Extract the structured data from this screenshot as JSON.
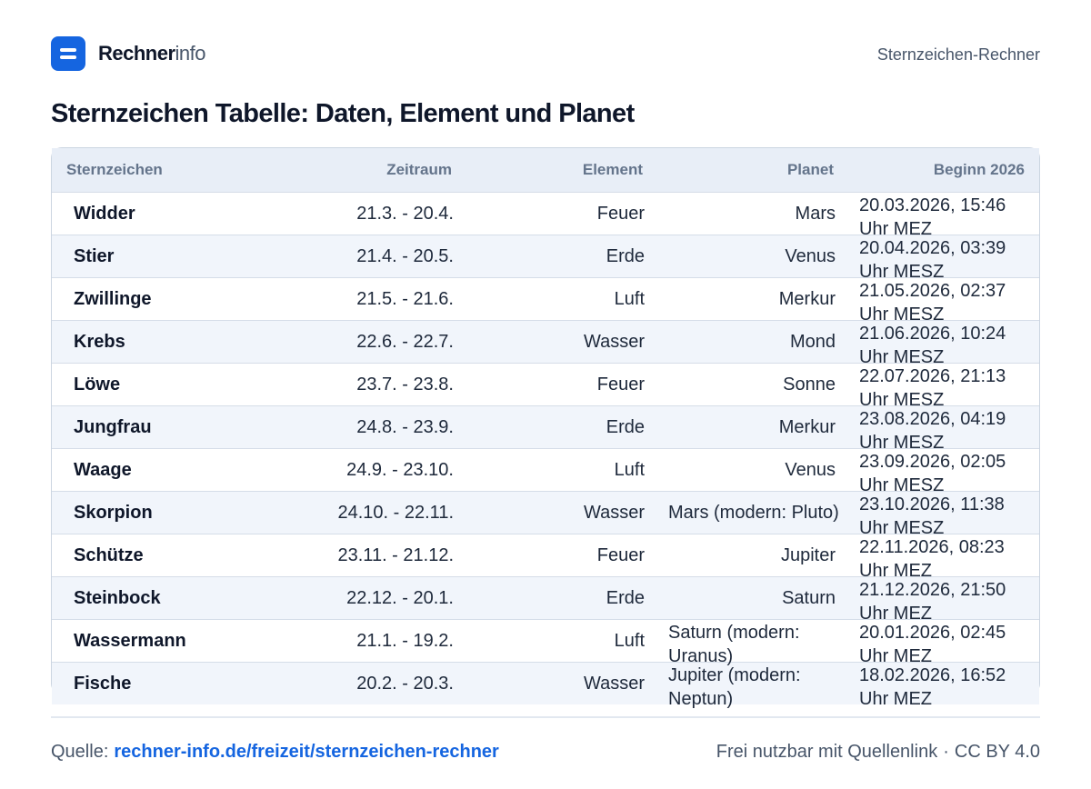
{
  "header": {
    "logo_icon": "equals-icon",
    "brand_bold": "Rechner",
    "brand_light": "info",
    "section": "Sternzeichen-Rechner",
    "accent_color": "#1565e0"
  },
  "title": "Sternzeichen Tabelle: Daten, Element und Planet",
  "table": {
    "headers": [
      "Sternzeichen",
      "Zeitraum",
      "Element",
      "Planet",
      "Beginn 2026"
    ],
    "rows": [
      [
        "Widder",
        "21.3. - 20.4.",
        "Feuer",
        "Mars",
        "20.03.2026, 15:46 Uhr MEZ"
      ],
      [
        "Stier",
        "21.4. - 20.5.",
        "Erde",
        "Venus",
        "20.04.2026, 03:39 Uhr MESZ"
      ],
      [
        "Zwillinge",
        "21.5. - 21.6.",
        "Luft",
        "Merkur",
        "21.05.2026, 02:37 Uhr MESZ"
      ],
      [
        "Krebs",
        "22.6. - 22.7.",
        "Wasser",
        "Mond",
        "21.06.2026, 10:24 Uhr MESZ"
      ],
      [
        "Löwe",
        "23.7. - 23.8.",
        "Feuer",
        "Sonne",
        "22.07.2026, 21:13 Uhr MESZ"
      ],
      [
        "Jungfrau",
        "24.8. - 23.9.",
        "Erde",
        "Merkur",
        "23.08.2026, 04:19 Uhr MESZ"
      ],
      [
        "Waage",
        "24.9. - 23.10.",
        "Luft",
        "Venus",
        "23.09.2026, 02:05 Uhr MESZ"
      ],
      [
        "Skorpion",
        "24.10. - 22.11.",
        "Wasser",
        "Mars (modern: Pluto)",
        "23.10.2026, 11:38 Uhr MESZ"
      ],
      [
        "Schütze",
        "23.11. - 21.12.",
        "Feuer",
        "Jupiter",
        "22.11.2026, 08:23 Uhr MEZ"
      ],
      [
        "Steinbock",
        "22.12. - 20.1.",
        "Erde",
        "Saturn",
        "21.12.2026, 21:50 Uhr MEZ"
      ],
      [
        "Wassermann",
        "21.1. - 19.2.",
        "Luft",
        "Saturn (modern: Uranus)",
        "20.01.2026, 02:45 Uhr MEZ"
      ],
      [
        "Fische",
        "20.2. - 20.3.",
        "Wasser",
        "Jupiter (modern: Neptun)",
        "18.02.2026, 16:52 Uhr MEZ"
      ]
    ]
  },
  "footer": {
    "source_label": "Quelle:",
    "source_link": "rechner-info.de/freizeit/sternzeichen-rechner",
    "license_text": "Frei nutzbar mit Quellenlink",
    "separator": "·",
    "license": "CC BY 4.0"
  }
}
